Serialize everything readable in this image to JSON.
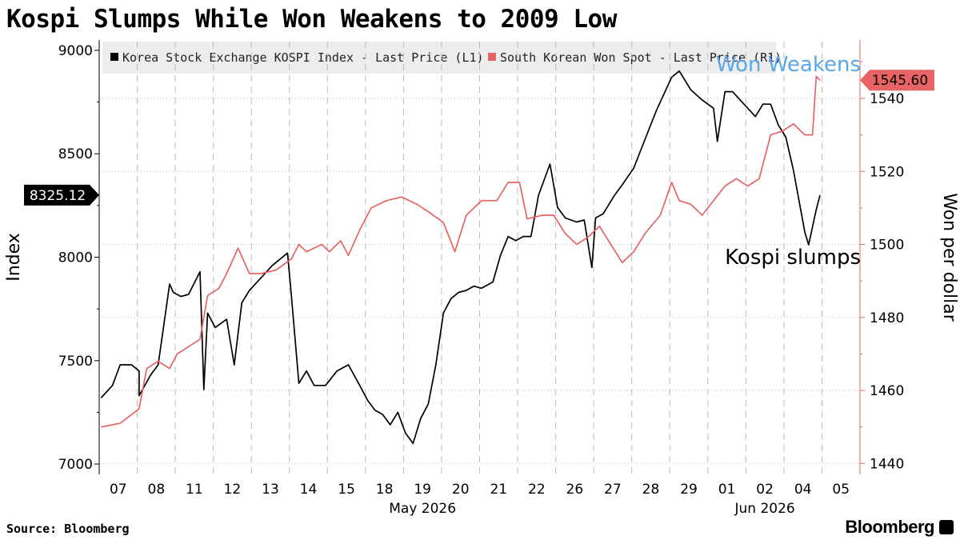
{
  "title": "Kospi Slumps While Won Weakens to 2009 Low",
  "source": "Source: Bloomberg",
  "brand": "Bloomberg",
  "colors": {
    "kospi": "#000000",
    "won": "#e86464",
    "annotation_blue": "#5aa6e6",
    "grid": "#bbbbbb"
  },
  "chart_data": {
    "type": "line",
    "xlabel_groups": [
      {
        "label": "May 2026"
      },
      {
        "label": "Jun 2026"
      }
    ],
    "x_ticks": [
      "07",
      "08",
      "11",
      "12",
      "13",
      "14",
      "15",
      "18",
      "19",
      "20",
      "21",
      "22",
      "26",
      "27",
      "28",
      "29",
      "01",
      "02",
      "04",
      "05"
    ],
    "left_axis": {
      "label": "Index",
      "ylim": [
        6950,
        9050
      ],
      "ticks": [
        7000,
        7500,
        8000,
        8500,
        9000
      ]
    },
    "right_axis": {
      "label": "Won per dollar",
      "ylim": [
        1437,
        1556
      ],
      "ticks": [
        1440,
        1460,
        1480,
        1500,
        1520,
        1540
      ]
    },
    "legend": {
      "placement": "top-left"
    },
    "grid": true,
    "series": [
      {
        "name": "Korea Stock Exchange KOSPI Index - Last Price (L1)",
        "axis": "left",
        "last_value_label": "8325.12",
        "points": [
          [
            0,
            7320
          ],
          [
            0.3,
            7380
          ],
          [
            0.5,
            7480
          ],
          [
            0.8,
            7480
          ],
          [
            1.0,
            7450
          ],
          [
            1.0,
            7330
          ],
          [
            1.3,
            7430
          ],
          [
            1.5,
            7480
          ],
          [
            1.6,
            7610
          ],
          [
            1.8,
            7870
          ],
          [
            1.9,
            7830
          ],
          [
            2.1,
            7810
          ],
          [
            2.3,
            7820
          ],
          [
            2.6,
            7930
          ],
          [
            2.7,
            7360
          ],
          [
            2.8,
            7730
          ],
          [
            3.0,
            7660
          ],
          [
            3.3,
            7700
          ],
          [
            3.5,
            7480
          ],
          [
            3.7,
            7780
          ],
          [
            3.9,
            7840
          ],
          [
            4.2,
            7900
          ],
          [
            4.5,
            7960
          ],
          [
            4.9,
            8020
          ],
          [
            5.0,
            7820
          ],
          [
            5.2,
            7390
          ],
          [
            5.4,
            7450
          ],
          [
            5.6,
            7380
          ],
          [
            5.9,
            7380
          ],
          [
            6.2,
            7450
          ],
          [
            6.5,
            7480
          ],
          [
            6.8,
            7380
          ],
          [
            7.0,
            7310
          ],
          [
            7.2,
            7260
          ],
          [
            7.4,
            7240
          ],
          [
            7.6,
            7190
          ],
          [
            7.8,
            7250
          ],
          [
            8.0,
            7150
          ],
          [
            8.2,
            7100
          ],
          [
            8.4,
            7220
          ],
          [
            8.6,
            7290
          ],
          [
            8.8,
            7480
          ],
          [
            9.0,
            7730
          ],
          [
            9.2,
            7800
          ],
          [
            9.4,
            7830
          ],
          [
            9.6,
            7840
          ],
          [
            9.8,
            7860
          ],
          [
            10.0,
            7850
          ],
          [
            10.3,
            7880
          ],
          [
            10.5,
            8010
          ],
          [
            10.7,
            8100
          ],
          [
            10.9,
            8080
          ],
          [
            11.1,
            8100
          ],
          [
            11.3,
            8100
          ],
          [
            11.5,
            8300
          ],
          [
            11.8,
            8450
          ],
          [
            12.0,
            8240
          ],
          [
            12.2,
            8190
          ],
          [
            12.5,
            8170
          ],
          [
            12.7,
            8180
          ],
          [
            12.9,
            7950
          ],
          [
            13.0,
            8190
          ],
          [
            13.2,
            8210
          ],
          [
            13.5,
            8300
          ],
          [
            13.7,
            8350
          ],
          [
            14.0,
            8430
          ],
          [
            14.3,
            8570
          ],
          [
            14.6,
            8710
          ],
          [
            15.0,
            8870
          ],
          [
            15.2,
            8900
          ],
          [
            15.5,
            8810
          ],
          [
            15.8,
            8760
          ],
          [
            16.1,
            8720
          ],
          [
            16.2,
            8560
          ],
          [
            16.4,
            8800
          ],
          [
            16.6,
            8800
          ],
          [
            16.8,
            8760
          ],
          [
            17.0,
            8720
          ],
          [
            17.2,
            8680
          ],
          [
            17.4,
            8740
          ],
          [
            17.6,
            8740
          ],
          [
            17.8,
            8640
          ],
          [
            18.0,
            8580
          ],
          [
            18.2,
            8420
          ],
          [
            18.5,
            8120
          ],
          [
            18.6,
            8060
          ],
          [
            18.8,
            8230
          ],
          [
            18.9,
            8300
          ]
        ]
      },
      {
        "name": "South Korean Won Spot - Last Price (R1)",
        "axis": "right",
        "last_value_label": "1545.60",
        "points": [
          [
            0,
            1450
          ],
          [
            0.5,
            1451
          ],
          [
            1.0,
            1455
          ],
          [
            1.2,
            1466
          ],
          [
            1.5,
            1468
          ],
          [
            1.8,
            1466
          ],
          [
            2.0,
            1470
          ],
          [
            2.3,
            1472
          ],
          [
            2.6,
            1474
          ],
          [
            2.8,
            1486
          ],
          [
            3.1,
            1488
          ],
          [
            3.3,
            1492
          ],
          [
            3.6,
            1499
          ],
          [
            3.9,
            1492
          ],
          [
            4.2,
            1492
          ],
          [
            4.6,
            1493
          ],
          [
            5.0,
            1496
          ],
          [
            5.2,
            1500
          ],
          [
            5.4,
            1498
          ],
          [
            5.8,
            1500
          ],
          [
            6.0,
            1498
          ],
          [
            6.3,
            1501
          ],
          [
            6.5,
            1497
          ],
          [
            6.8,
            1504
          ],
          [
            7.1,
            1510
          ],
          [
            7.5,
            1512
          ],
          [
            7.9,
            1513
          ],
          [
            8.3,
            1511
          ],
          [
            8.6,
            1509
          ],
          [
            9.0,
            1506
          ],
          [
            9.3,
            1498
          ],
          [
            9.6,
            1508
          ],
          [
            10.0,
            1512
          ],
          [
            10.4,
            1512
          ],
          [
            10.7,
            1517
          ],
          [
            11.0,
            1517
          ],
          [
            11.2,
            1507
          ],
          [
            11.6,
            1508
          ],
          [
            11.9,
            1508
          ],
          [
            12.2,
            1503
          ],
          [
            12.5,
            1500
          ],
          [
            12.8,
            1502
          ],
          [
            13.1,
            1505
          ],
          [
            13.4,
            1500
          ],
          [
            13.7,
            1495
          ],
          [
            14.0,
            1498
          ],
          [
            14.3,
            1503
          ],
          [
            14.7,
            1508
          ],
          [
            15.0,
            1517
          ],
          [
            15.2,
            1512
          ],
          [
            15.5,
            1511
          ],
          [
            15.8,
            1508
          ],
          [
            16.1,
            1512
          ],
          [
            16.4,
            1516
          ],
          [
            16.7,
            1518
          ],
          [
            17.0,
            1516
          ],
          [
            17.3,
            1518
          ],
          [
            17.6,
            1530
          ],
          [
            17.9,
            1531
          ],
          [
            18.2,
            1533
          ],
          [
            18.5,
            1530
          ],
          [
            18.7,
            1530
          ],
          [
            18.8,
            1546
          ],
          [
            18.9,
            1545
          ]
        ]
      }
    ],
    "annotations": [
      {
        "text": "Won Weakens",
        "series": "won"
      },
      {
        "text": "Kospi slumps",
        "series": "kospi"
      }
    ]
  }
}
